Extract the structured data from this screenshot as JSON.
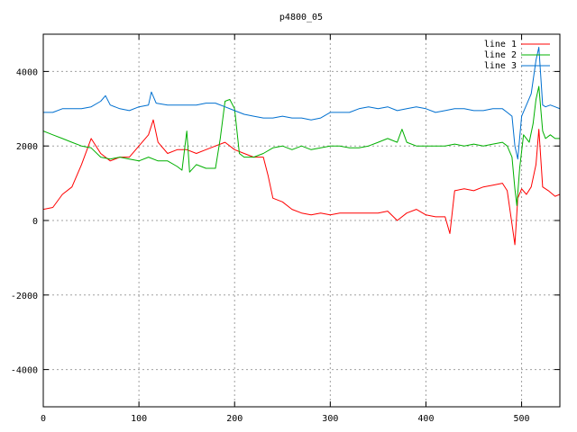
{
  "chart_data": {
    "type": "line",
    "title": "p4800_05",
    "xlabel": "",
    "ylabel": "",
    "xlim": [
      0,
      540
    ],
    "ylim": [
      -5000,
      5000
    ],
    "xticks": [
      0,
      100,
      200,
      300,
      400,
      500
    ],
    "yticks": [
      -4000,
      -2000,
      0,
      2000,
      4000
    ],
    "grid": true,
    "legend_position": "top-right",
    "series": [
      {
        "name": "line 1",
        "color": "#ff0000",
        "x": [
          0,
          10,
          20,
          30,
          40,
          50,
          60,
          70,
          80,
          90,
          100,
          110,
          115,
          120,
          130,
          140,
          150,
          160,
          170,
          180,
          190,
          200,
          210,
          220,
          230,
          235,
          240,
          250,
          260,
          270,
          280,
          290,
          300,
          310,
          320,
          330,
          340,
          350,
          360,
          370,
          380,
          390,
          400,
          410,
          420,
          425,
          430,
          440,
          450,
          460,
          470,
          480,
          485,
          490,
          493,
          496,
          500,
          505,
          510,
          515,
          518,
          522,
          528,
          535,
          540
        ],
        "y": [
          300,
          350,
          700,
          900,
          1500,
          2200,
          1800,
          1600,
          1700,
          1700,
          2000,
          2300,
          2700,
          2100,
          1800,
          1900,
          1900,
          1800,
          1900,
          2000,
          2100,
          1900,
          1800,
          1700,
          1700,
          1200,
          600,
          500,
          300,
          200,
          150,
          200,
          150,
          200,
          200,
          200,
          200,
          200,
          250,
          0,
          200,
          300,
          150,
          100,
          100,
          -350,
          800,
          850,
          800,
          900,
          950,
          1000,
          800,
          -100,
          -650,
          600,
          850,
          700,
          900,
          1500,
          2450,
          900,
          800,
          650,
          700
        ]
      },
      {
        "name": "line 2",
        "color": "#00b000",
        "x": [
          0,
          10,
          20,
          30,
          40,
          50,
          60,
          70,
          80,
          90,
          100,
          110,
          120,
          130,
          140,
          145,
          150,
          153,
          160,
          170,
          180,
          185,
          190,
          195,
          200,
          205,
          210,
          220,
          230,
          240,
          250,
          260,
          270,
          280,
          290,
          300,
          310,
          320,
          330,
          340,
          350,
          360,
          370,
          375,
          380,
          390,
          400,
          410,
          420,
          430,
          440,
          450,
          460,
          470,
          480,
          485,
          490,
          493,
          495,
          498,
          502,
          508,
          512,
          515,
          518,
          522,
          525,
          530,
          535,
          540
        ],
        "y": [
          2400,
          2300,
          2200,
          2100,
          2000,
          1950,
          1700,
          1650,
          1700,
          1650,
          1600,
          1700,
          1600,
          1600,
          1450,
          1350,
          2400,
          1300,
          1500,
          1400,
          1400,
          2200,
          3200,
          3250,
          3000,
          1800,
          1700,
          1700,
          1800,
          1950,
          2000,
          1900,
          2000,
          1900,
          1950,
          2000,
          2000,
          1950,
          1950,
          2000,
          2100,
          2200,
          2100,
          2450,
          2100,
          2000,
          2000,
          2000,
          2000,
          2050,
          2000,
          2050,
          2000,
          2050,
          2100,
          2000,
          1700,
          850,
          400,
          1400,
          2300,
          2100,
          2600,
          3250,
          3600,
          2400,
          2200,
          2300,
          2200,
          2200
        ]
      },
      {
        "name": "line 3",
        "color": "#0070d0",
        "x": [
          0,
          10,
          20,
          30,
          40,
          50,
          60,
          65,
          70,
          80,
          90,
          100,
          110,
          113,
          118,
          130,
          140,
          150,
          160,
          170,
          180,
          190,
          200,
          210,
          220,
          230,
          240,
          250,
          260,
          270,
          280,
          290,
          300,
          310,
          320,
          330,
          340,
          350,
          360,
          370,
          380,
          390,
          400,
          410,
          420,
          430,
          440,
          450,
          460,
          470,
          480,
          485,
          490,
          493,
          496,
          500,
          505,
          510,
          515,
          518,
          522,
          525,
          530,
          535,
          540
        ],
        "y": [
          2900,
          2900,
          3000,
          3000,
          3000,
          3050,
          3200,
          3350,
          3100,
          3000,
          2950,
          3050,
          3100,
          3450,
          3150,
          3100,
          3100,
          3100,
          3100,
          3150,
          3150,
          3050,
          2950,
          2850,
          2800,
          2750,
          2750,
          2800,
          2750,
          2750,
          2700,
          2750,
          2900,
          2900,
          2900,
          3000,
          3050,
          3000,
          3050,
          2950,
          3000,
          3050,
          3000,
          2900,
          2950,
          3000,
          3000,
          2950,
          2950,
          3000,
          3000,
          2900,
          2800,
          2000,
          1650,
          2800,
          3100,
          3400,
          4300,
          4650,
          3100,
          3050,
          3100,
          3050,
          3000
        ]
      }
    ]
  }
}
